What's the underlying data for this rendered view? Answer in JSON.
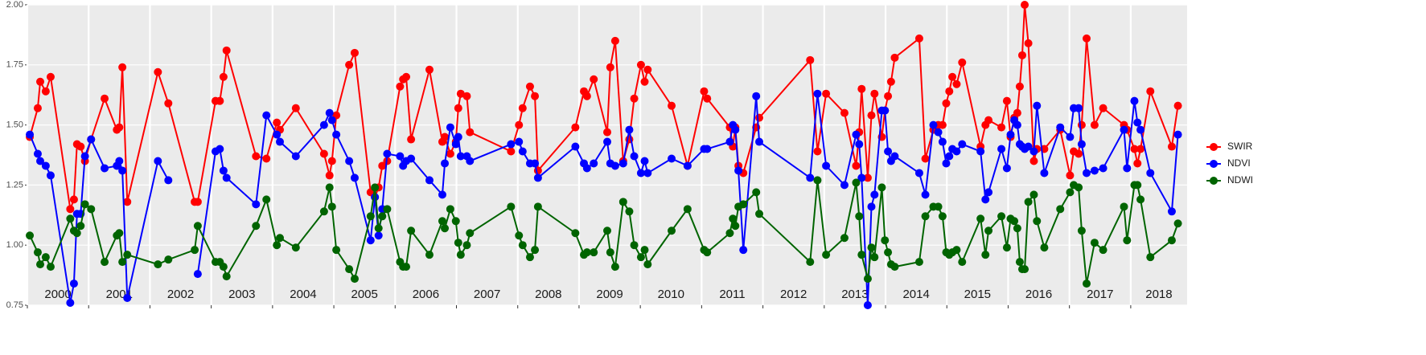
{
  "chart_data": {
    "type": "line",
    "x": [
      2000.04,
      2000.17,
      2000.21,
      2000.3,
      2000.38,
      2000.7,
      2000.76,
      2000.81,
      2000.87,
      2000.94,
      2001.04,
      2001.26,
      2001.46,
      2001.5,
      2001.55,
      2001.63,
      2002.13,
      2002.3,
      2002.73,
      2002.78,
      2003.07,
      2003.14,
      2003.2,
      2003.25,
      2003.73,
      2003.9,
      2004.07,
      2004.12,
      2004.38,
      2004.84,
      2004.93,
      2004.97,
      2005.04,
      2005.25,
      2005.34,
      2005.6,
      2005.67,
      2005.73,
      2005.79,
      2005.87,
      2006.08,
      2006.13,
      2006.18,
      2006.26,
      2006.56,
      2006.77,
      2006.81,
      2006.9,
      2006.99,
      2007.03,
      2007.07,
      2007.17,
      2007.22,
      2007.89,
      2008.02,
      2008.08,
      2008.2,
      2008.28,
      2008.33,
      2008.94,
      2009.08,
      2009.13,
      2009.24,
      2009.46,
      2009.51,
      2009.59,
      2009.72,
      2009.82,
      2009.9,
      2010.01,
      2010.07,
      2010.12,
      2010.51,
      2010.77,
      2011.04,
      2011.09,
      2011.46,
      2011.51,
      2011.55,
      2011.6,
      2011.68,
      2011.89,
      2011.94,
      2012.77,
      2012.89,
      2013.03,
      2013.33,
      2013.52,
      2013.57,
      2013.61,
      2013.71,
      2013.77,
      2013.82,
      2013.94,
      2013.99,
      2014.04,
      2014.09,
      2014.15,
      2014.55,
      2014.65,
      2014.78,
      2014.86,
      2014.93,
      2014.99,
      2015.04,
      2015.09,
      2015.16,
      2015.25,
      2015.55,
      2015.63,
      2015.68,
      2015.89,
      2015.98,
      2016.04,
      2016.1,
      2016.15,
      2016.19,
      2016.23,
      2016.27,
      2016.33,
      2016.42,
      2016.47,
      2016.59,
      2016.85,
      2017.01,
      2017.07,
      2017.15,
      2017.2,
      2017.28,
      2017.41,
      2017.55,
      2017.89,
      2017.94,
      2018.06,
      2018.11,
      2018.16,
      2018.32,
      2018.67,
      2018.77
    ],
    "series": [
      {
        "name": "SWIR",
        "color": "#ff0000",
        "values": [
          1.45,
          1.57,
          1.68,
          1.64,
          1.7,
          1.15,
          1.19,
          1.42,
          1.41,
          1.35,
          1.44,
          1.61,
          1.48,
          1.49,
          1.74,
          1.18,
          1.72,
          1.59,
          1.18,
          1.18,
          1.6,
          1.6,
          1.7,
          1.81,
          1.37,
          1.36,
          1.51,
          1.48,
          1.57,
          1.38,
          1.29,
          1.35,
          1.54,
          1.75,
          1.8,
          1.22,
          1.2,
          1.24,
          1.33,
          1.35,
          1.66,
          1.69,
          1.7,
          1.44,
          1.73,
          1.43,
          1.45,
          1.38,
          1.43,
          1.57,
          1.63,
          1.62,
          1.47,
          1.39,
          1.5,
          1.57,
          1.66,
          1.62,
          1.31,
          1.49,
          1.64,
          1.62,
          1.69,
          1.47,
          1.74,
          1.85,
          1.35,
          1.44,
          1.61,
          1.75,
          1.68,
          1.73,
          1.58,
          1.33,
          1.64,
          1.61,
          1.49,
          1.41,
          1.49,
          1.33,
          1.3,
          1.49,
          1.53,
          1.77,
          1.39,
          1.63,
          1.55,
          1.33,
          1.47,
          1.65,
          1.28,
          1.54,
          1.63,
          1.45,
          1.56,
          1.62,
          1.68,
          1.78,
          1.86,
          1.36,
          1.48,
          1.5,
          1.5,
          1.59,
          1.64,
          1.7,
          1.67,
          1.76,
          1.41,
          1.5,
          1.52,
          1.49,
          1.6,
          1.45,
          1.53,
          1.55,
          1.66,
          1.79,
          2.0,
          1.84,
          1.35,
          1.4,
          1.4,
          1.48,
          1.29,
          1.39,
          1.38,
          1.5,
          1.86,
          1.5,
          1.57,
          1.5,
          1.48,
          1.4,
          1.34,
          1.4,
          1.64,
          1.41,
          1.58
        ]
      },
      {
        "name": "NDVI",
        "color": "#0000ff",
        "values": [
          1.46,
          1.38,
          1.35,
          1.33,
          1.29,
          0.76,
          0.84,
          1.13,
          1.13,
          1.37,
          1.44,
          1.32,
          1.33,
          1.35,
          1.31,
          0.78,
          1.35,
          1.27,
          null,
          0.88,
          1.39,
          1.4,
          1.31,
          1.28,
          1.17,
          1.54,
          1.46,
          1.43,
          1.37,
          1.5,
          1.55,
          1.52,
          1.46,
          1.35,
          1.28,
          1.02,
          1.2,
          1.04,
          1.15,
          1.38,
          1.37,
          1.33,
          1.35,
          1.36,
          1.27,
          1.21,
          1.34,
          1.49,
          1.42,
          1.45,
          1.37,
          1.37,
          1.35,
          1.42,
          1.43,
          1.39,
          1.34,
          1.34,
          1.28,
          1.41,
          1.34,
          1.32,
          1.34,
          1.43,
          1.34,
          1.33,
          1.34,
          1.48,
          1.37,
          1.3,
          1.35,
          1.3,
          1.36,
          1.33,
          1.4,
          1.4,
          1.43,
          1.5,
          1.48,
          1.31,
          0.98,
          1.62,
          1.43,
          1.28,
          1.63,
          1.33,
          1.25,
          1.46,
          1.42,
          1.28,
          0.75,
          1.16,
          1.21,
          1.56,
          1.56,
          1.39,
          1.35,
          1.37,
          1.3,
          1.21,
          1.5,
          1.47,
          1.43,
          1.34,
          1.37,
          1.4,
          1.39,
          1.42,
          1.39,
          1.19,
          1.22,
          1.4,
          1.32,
          1.46,
          1.52,
          1.5,
          1.42,
          1.41,
          1.4,
          1.41,
          1.39,
          1.58,
          1.3,
          1.49,
          1.45,
          1.57,
          1.57,
          1.42,
          1.3,
          1.31,
          1.32,
          1.48,
          1.32,
          1.6,
          1.51,
          1.48,
          1.3,
          1.14,
          1.46
        ]
      },
      {
        "name": "NDWI",
        "color": "#006400",
        "values": [
          1.04,
          0.97,
          0.92,
          0.95,
          0.91,
          1.11,
          1.06,
          1.05,
          1.08,
          1.17,
          1.15,
          0.93,
          1.04,
          1.05,
          0.93,
          0.96,
          0.92,
          0.94,
          0.98,
          1.08,
          0.93,
          0.93,
          0.91,
          0.87,
          1.08,
          1.19,
          1.0,
          1.03,
          0.99,
          1.14,
          1.24,
          1.16,
          0.98,
          0.9,
          0.86,
          1.12,
          1.24,
          1.07,
          1.12,
          1.15,
          0.93,
          0.91,
          0.91,
          1.06,
          0.96,
          1.1,
          1.07,
          1.15,
          1.1,
          1.01,
          0.96,
          1.0,
          1.05,
          1.16,
          1.04,
          1.0,
          0.95,
          0.98,
          1.16,
          1.05,
          0.96,
          0.97,
          0.97,
          1.06,
          0.97,
          0.91,
          1.18,
          1.14,
          1.0,
          0.95,
          0.98,
          0.92,
          1.06,
          1.15,
          0.98,
          0.97,
          1.05,
          1.11,
          1.08,
          1.16,
          1.17,
          1.22,
          1.13,
          0.93,
          1.27,
          0.96,
          1.03,
          1.26,
          1.12,
          0.96,
          0.86,
          0.99,
          0.95,
          1.24,
          1.02,
          0.97,
          0.92,
          0.91,
          0.93,
          1.12,
          1.16,
          1.16,
          1.12,
          0.97,
          0.96,
          0.97,
          0.98,
          0.93,
          1.11,
          0.96,
          1.06,
          1.12,
          0.99,
          1.11,
          1.1,
          1.07,
          0.93,
          0.9,
          0.9,
          1.18,
          1.21,
          1.1,
          0.99,
          1.15,
          1.22,
          1.25,
          1.24,
          1.06,
          0.84,
          1.01,
          0.98,
          1.16,
          1.02,
          1.25,
          1.25,
          1.19,
          0.95,
          1.02,
          1.09
        ]
      }
    ],
    "xlim": [
      2000,
      2018.92
    ],
    "xticks": [
      2000,
      2001,
      2002,
      2003,
      2004,
      2005,
      2006,
      2007,
      2008,
      2009,
      2010,
      2011,
      2012,
      2013,
      2014,
      2015,
      2016,
      2017,
      2018
    ],
    "ylim": [
      0.75,
      2.0
    ],
    "yticks": [
      {
        "value": 0.75,
        "label": "0.75"
      },
      {
        "value": 1.0,
        "label": "1.00"
      },
      {
        "value": 1.25,
        "label": "1.25"
      },
      {
        "value": 1.5,
        "label": "1.50"
      },
      {
        "value": 1.75,
        "label": "1.75"
      },
      {
        "value": 2.0,
        "label": "2.00"
      }
    ],
    "grid": true,
    "legend": "right"
  }
}
